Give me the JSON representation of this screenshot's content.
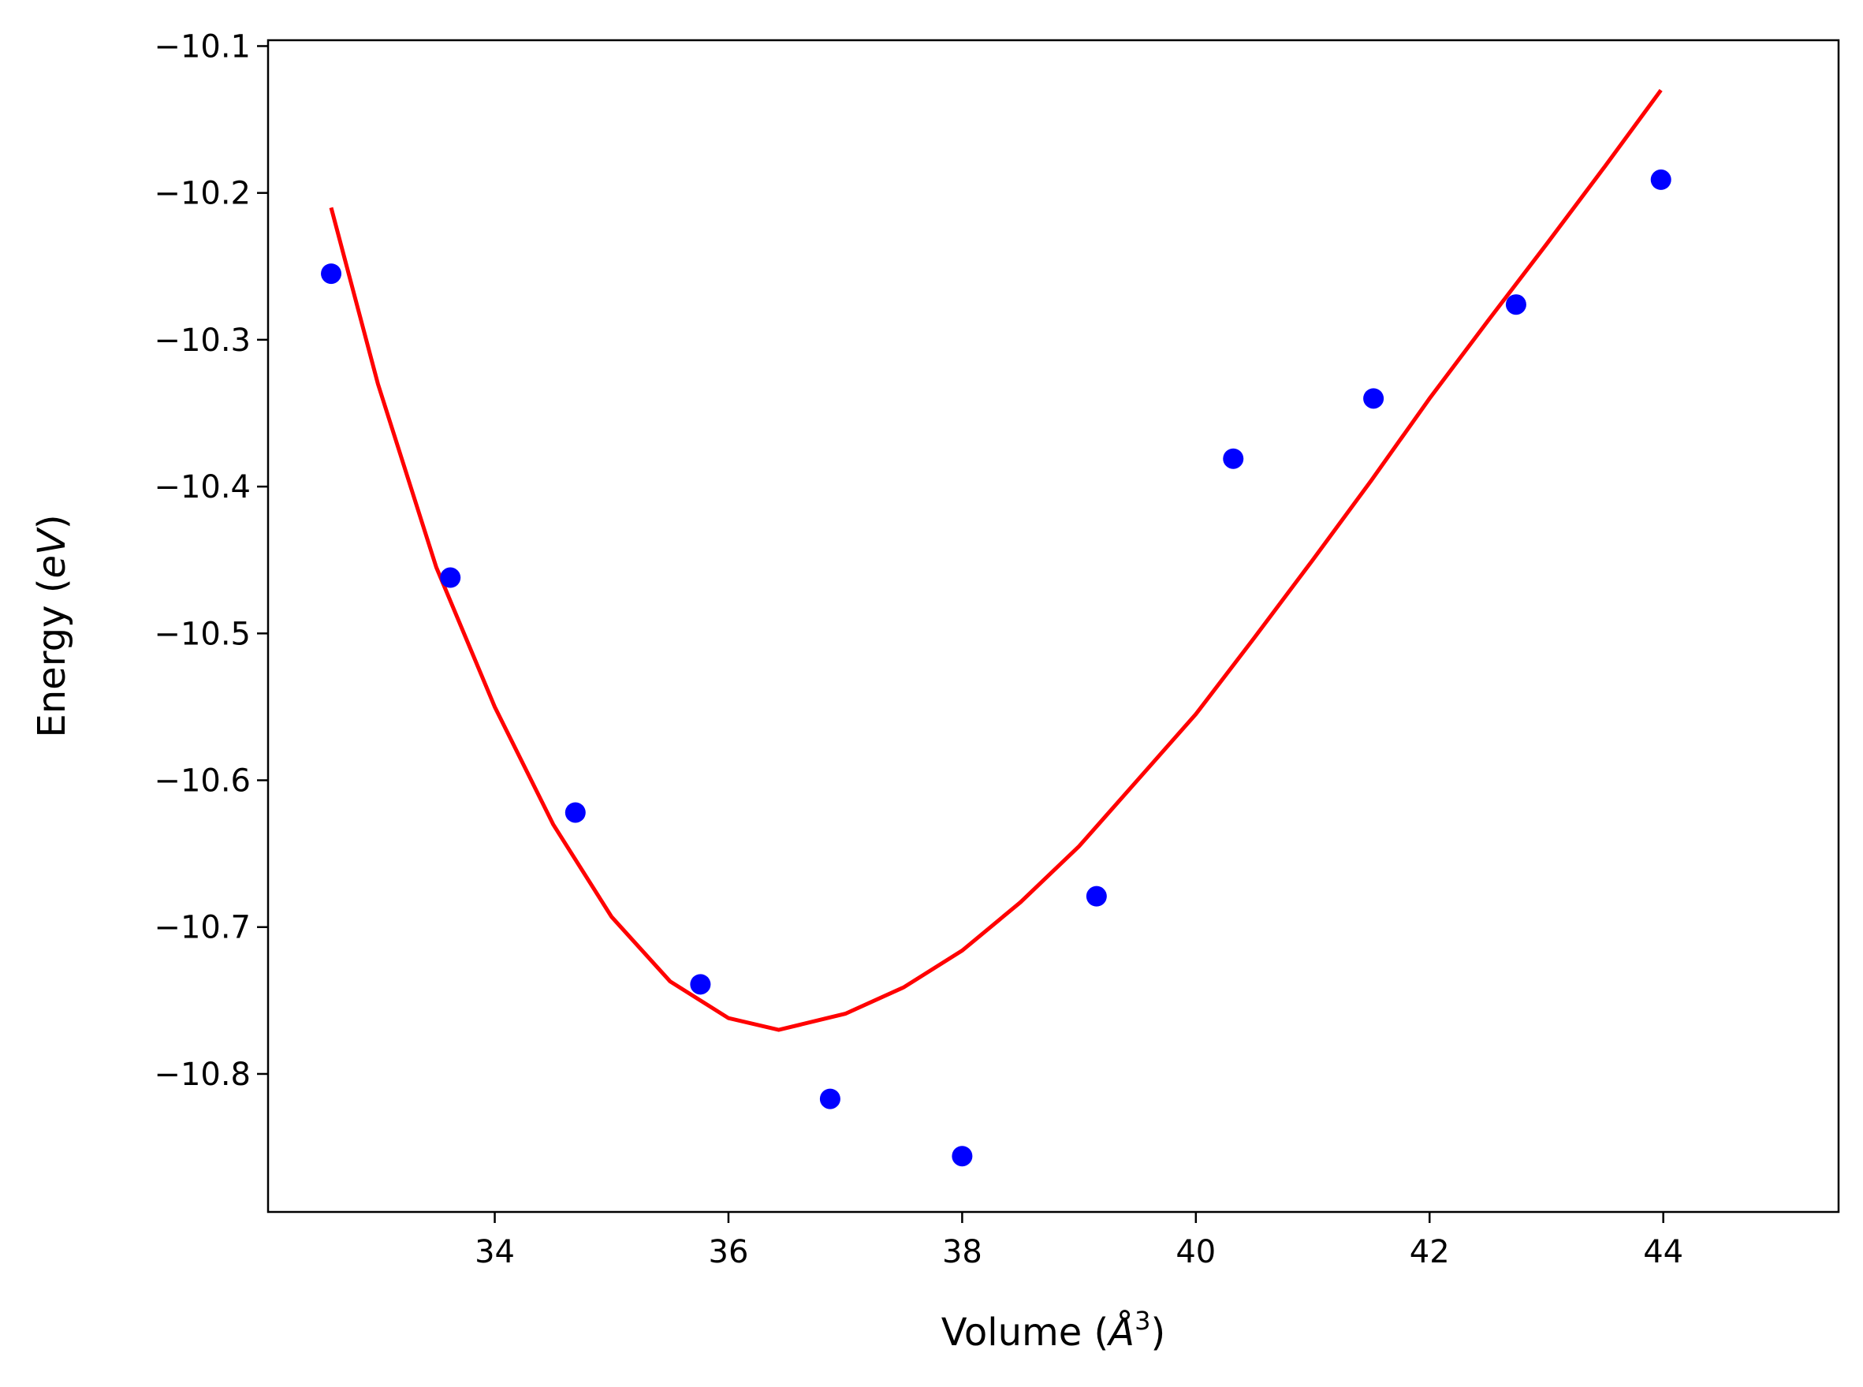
{
  "chart_data": {
    "type": "scatter",
    "xlabel": {
      "prefix": "Volume (",
      "symbol": "Å",
      "sup": "3",
      "suffix": ")"
    },
    "ylabel": {
      "prefix": "Energy (",
      "italic": "eV",
      "suffix": ")"
    },
    "xlim": [
      32.06,
      45.5
    ],
    "ylim": [
      -10.894,
      -10.096
    ],
    "x_ticks": [
      34,
      36,
      38,
      40,
      42,
      44
    ],
    "x_tick_labels": [
      "34",
      "36",
      "38",
      "40",
      "42",
      "44"
    ],
    "y_ticks": [
      -10.1,
      -10.2,
      -10.3,
      -10.4,
      -10.5,
      -10.6,
      -10.7,
      -10.8
    ],
    "y_tick_labels": [
      "−10.1",
      "−10.2",
      "−10.3",
      "−10.4",
      "−10.5",
      "−10.6",
      "−10.7",
      "−10.8"
    ],
    "grid": false,
    "series": [
      {
        "kind": "scatter",
        "color": "#0000ff",
        "x": [
          32.6,
          33.62,
          34.69,
          35.76,
          36.87,
          38.0,
          39.15,
          40.32,
          41.52,
          42.74,
          43.98
        ],
        "y": [
          -10.255,
          -10.462,
          -10.622,
          -10.739,
          -10.817,
          -10.856,
          -10.679,
          -10.381,
          -10.34,
          -10.276,
          -10.191
        ]
      },
      {
        "kind": "line",
        "color": "#ff0000",
        "x": [
          32.6,
          33.0,
          33.5,
          34.0,
          34.5,
          35.0,
          35.5,
          36.0,
          36.43,
          37.0,
          37.5,
          38.0,
          38.5,
          39.0,
          39.5,
          40.0,
          40.5,
          41.0,
          41.5,
          42.0,
          42.5,
          43.0,
          43.5,
          43.98
        ],
        "y": [
          -10.21,
          -10.33,
          -10.455,
          -10.55,
          -10.63,
          -10.693,
          -10.737,
          -10.762,
          -10.77,
          -10.759,
          -10.741,
          -10.716,
          -10.683,
          -10.645,
          -10.6,
          -10.555,
          -10.503,
          -10.45,
          -10.396,
          -10.34,
          -10.287,
          -10.235,
          -10.182,
          -10.13
        ]
      }
    ]
  }
}
